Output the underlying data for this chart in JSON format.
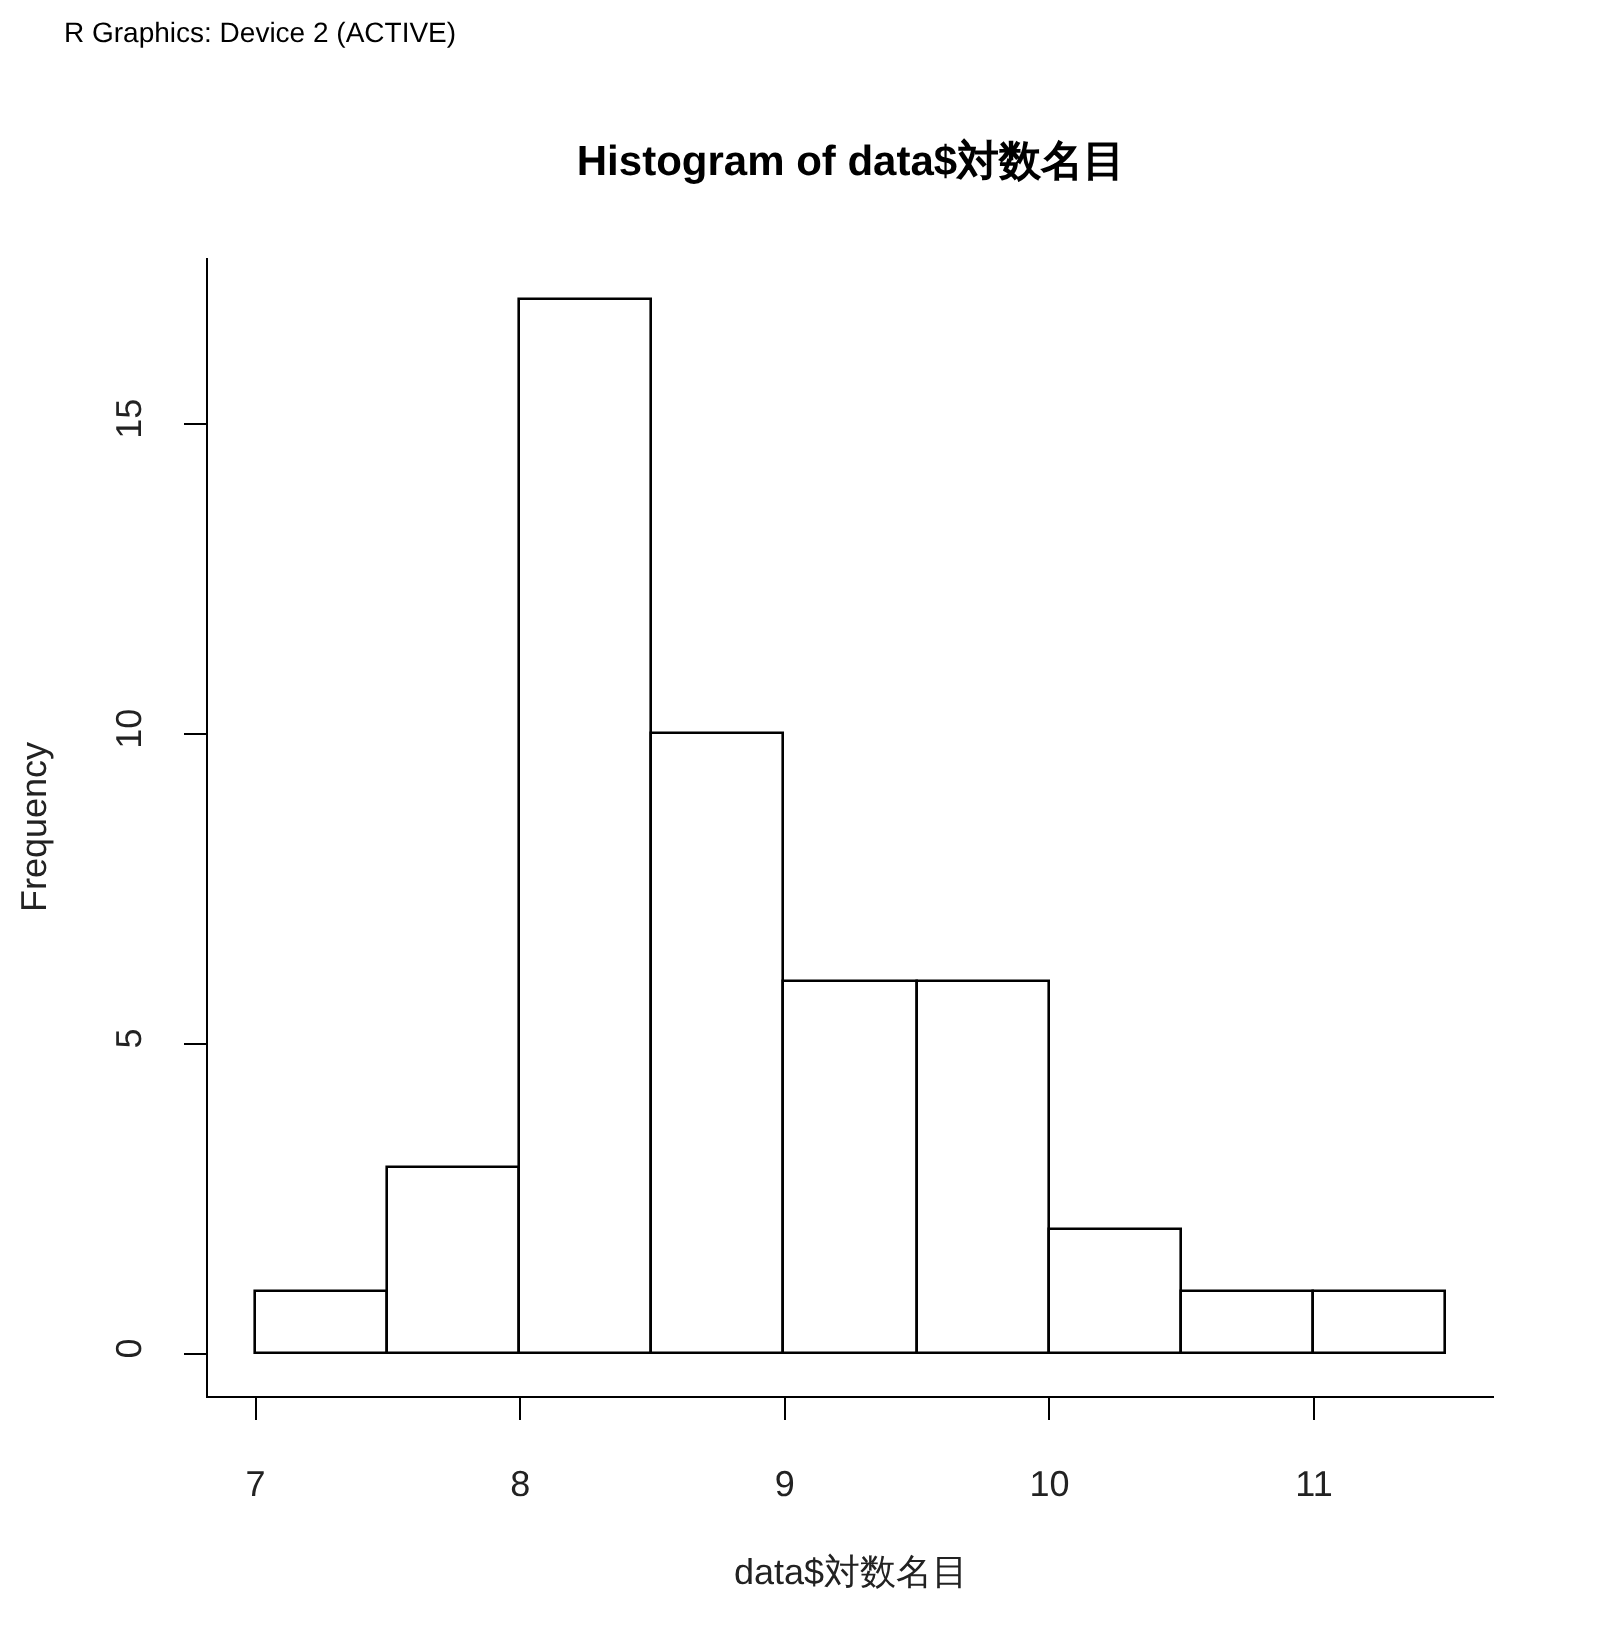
{
  "chart_data": {
    "type": "histogram",
    "title": "Histogram of data$対数名目",
    "xlabel": "data$対数名目",
    "ylabel": "Frequency",
    "annotations": [
      "R Graphics: Device 2 (ACTIVE)"
    ],
    "bins": [
      7,
      7.5,
      8,
      8.5,
      9,
      9.5,
      10,
      10.5,
      11,
      11.5
    ],
    "values": [
      1,
      3,
      17,
      10,
      6,
      6,
      2,
      1,
      1
    ],
    "color": "#ffffff",
    "xlim": [
      6.82,
      11.68
    ],
    "xticks": [
      7,
      8,
      9,
      10,
      11
    ],
    "ylim": [
      -0.68,
      17.68
    ],
    "yticks": [
      0,
      5,
      10,
      15
    ]
  }
}
